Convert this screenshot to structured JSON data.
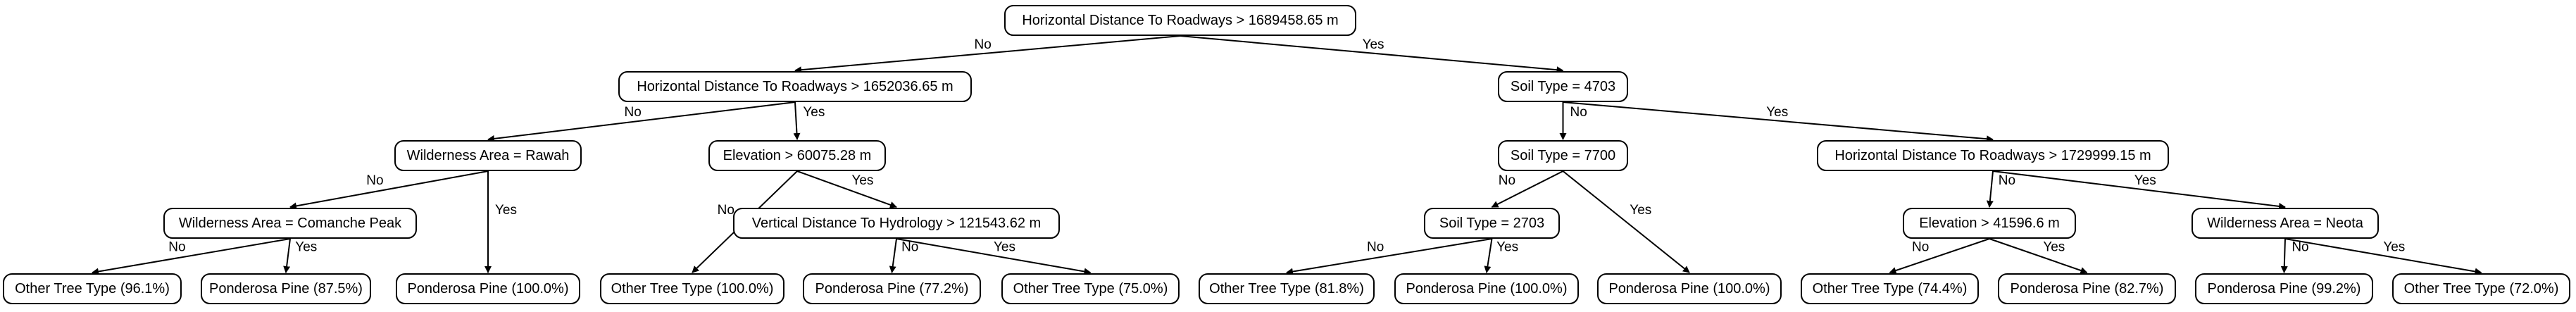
{
  "tree": {
    "nodes": [
      {
        "id": "n0",
        "text": "Horizontal Distance To Roadways > 1689458.65 m",
        "leaf": false
      },
      {
        "id": "n1",
        "text": "Horizontal Distance To Roadways > 1652036.65 m",
        "leaf": false
      },
      {
        "id": "n2",
        "text": "Soil Type = 4703",
        "leaf": false
      },
      {
        "id": "n3",
        "text": "Wilderness Area = Rawah",
        "leaf": false
      },
      {
        "id": "n4",
        "text": "Elevation > 60075.28 m",
        "leaf": false
      },
      {
        "id": "n5",
        "text": "Soil Type = 7700",
        "leaf": false
      },
      {
        "id": "n6",
        "text": "Horizontal Distance To Roadways > 1729999.15 m",
        "leaf": false
      },
      {
        "id": "n7",
        "text": "Wilderness Area = Comanche Peak",
        "leaf": false
      },
      {
        "id": "n8",
        "text": "Vertical Distance To Hydrology > 121543.62 m",
        "leaf": false
      },
      {
        "id": "n9",
        "text": "Soil Type = 2703",
        "leaf": false
      },
      {
        "id": "n10",
        "text": "Elevation > 41596.6 m",
        "leaf": false
      },
      {
        "id": "n11",
        "text": "Wilderness Area = Neota",
        "leaf": false
      },
      {
        "id": "l1",
        "text": "Other Tree Type (96.1%)",
        "leaf": true
      },
      {
        "id": "l2",
        "text": "Ponderosa Pine (87.5%)",
        "leaf": true
      },
      {
        "id": "l3",
        "text": "Ponderosa Pine (100.0%)",
        "leaf": true
      },
      {
        "id": "l4",
        "text": "Other Tree Type (100.0%)",
        "leaf": true
      },
      {
        "id": "l5",
        "text": "Ponderosa Pine (77.2%)",
        "leaf": true
      },
      {
        "id": "l6",
        "text": "Other Tree Type (75.0%)",
        "leaf": true
      },
      {
        "id": "l7",
        "text": "Other Tree Type (81.8%)",
        "leaf": true
      },
      {
        "id": "l8",
        "text": "Ponderosa Pine (100.0%)",
        "leaf": true
      },
      {
        "id": "l9",
        "text": "Ponderosa Pine (100.0%)",
        "leaf": true
      },
      {
        "id": "l10",
        "text": "Other Tree Type (74.4%)",
        "leaf": true
      },
      {
        "id": "l11",
        "text": "Ponderosa Pine (82.7%)",
        "leaf": true
      },
      {
        "id": "l12",
        "text": "Ponderosa Pine (99.2%)",
        "leaf": true
      },
      {
        "id": "l13",
        "text": "Other Tree Type (72.0%)",
        "leaf": true
      }
    ],
    "edges": [
      {
        "from": "n0",
        "to": "n1",
        "label": "No"
      },
      {
        "from": "n0",
        "to": "n2",
        "label": "Yes"
      },
      {
        "from": "n1",
        "to": "n3",
        "label": "No"
      },
      {
        "from": "n1",
        "to": "n4",
        "label": "Yes"
      },
      {
        "from": "n3",
        "to": "n7",
        "label": "No"
      },
      {
        "from": "n3",
        "to": "l3",
        "label": "Yes"
      },
      {
        "from": "n7",
        "to": "l1",
        "label": "No"
      },
      {
        "from": "n7",
        "to": "l2",
        "label": "Yes"
      },
      {
        "from": "n4",
        "to": "l4",
        "label": "No"
      },
      {
        "from": "n4",
        "to": "n8",
        "label": "Yes"
      },
      {
        "from": "n8",
        "to": "l5",
        "label": "No"
      },
      {
        "from": "n8",
        "to": "l6",
        "label": "Yes"
      },
      {
        "from": "n2",
        "to": "n5",
        "label": "No"
      },
      {
        "from": "n2",
        "to": "n6",
        "label": "Yes"
      },
      {
        "from": "n5",
        "to": "n9",
        "label": "No"
      },
      {
        "from": "n5",
        "to": "l9",
        "label": "Yes"
      },
      {
        "from": "n9",
        "to": "l7",
        "label": "No"
      },
      {
        "from": "n9",
        "to": "l8",
        "label": "Yes"
      },
      {
        "from": "n6",
        "to": "n10",
        "label": "No"
      },
      {
        "from": "n6",
        "to": "n11",
        "label": "Yes"
      },
      {
        "from": "n10",
        "to": "l10",
        "label": "No"
      },
      {
        "from": "n10",
        "to": "l11",
        "label": "Yes"
      },
      {
        "from": "n11",
        "to": "l12",
        "label": "No"
      },
      {
        "from": "n11",
        "to": "l13",
        "label": "Yes"
      }
    ]
  }
}
